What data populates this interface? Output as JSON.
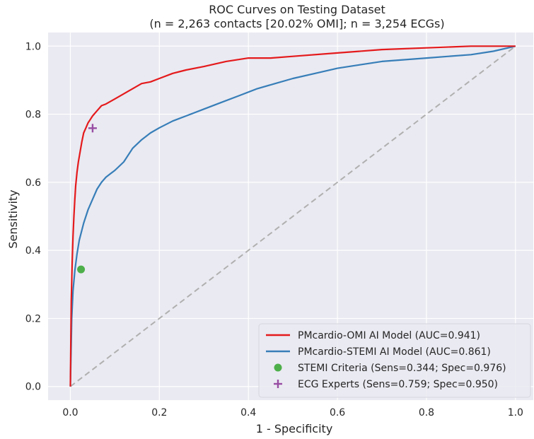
{
  "chart_data": {
    "type": "line",
    "title": "ROC Curves on Testing Dataset",
    "subtitle": "(n = 2,263 contacts [20.02% OMI]; n = 3,254 ECGs)",
    "xlabel": "1 - Specificity",
    "ylabel": "Sensitivity",
    "xlim": [
      -0.05,
      1.04
    ],
    "ylim": [
      -0.04,
      1.04
    ],
    "xticks": [
      "0.0",
      "0.2",
      "0.4",
      "0.6",
      "0.8",
      "1.0"
    ],
    "yticks": [
      "0.0",
      "0.2",
      "0.4",
      "0.6",
      "0.8",
      "1.0"
    ],
    "grid": true,
    "background": "#eaeaf2",
    "legend_position": "bottom-right",
    "series": [
      {
        "name": "PMcardio-OMI AI Model (AUC=0.941)",
        "color": "#e41a1c",
        "x": [
          0.0,
          0.002,
          0.004,
          0.006,
          0.008,
          0.01,
          0.012,
          0.015,
          0.018,
          0.022,
          0.026,
          0.03,
          0.035,
          0.04,
          0.045,
          0.05,
          0.06,
          0.07,
          0.08,
          0.1,
          0.12,
          0.14,
          0.16,
          0.18,
          0.2,
          0.23,
          0.26,
          0.3,
          0.35,
          0.4,
          0.45,
          0.5,
          0.6,
          0.7,
          0.8,
          0.9,
          1.0
        ],
        "y": [
          0.0,
          0.25,
          0.36,
          0.44,
          0.5,
          0.55,
          0.59,
          0.63,
          0.66,
          0.69,
          0.72,
          0.745,
          0.76,
          0.775,
          0.785,
          0.795,
          0.81,
          0.825,
          0.83,
          0.845,
          0.86,
          0.875,
          0.89,
          0.895,
          0.905,
          0.92,
          0.93,
          0.94,
          0.955,
          0.965,
          0.965,
          0.97,
          0.98,
          0.99,
          0.995,
          1.0,
          1.0
        ]
      },
      {
        "name": "PMcardio-STEMI AI Model (AUC=0.861)",
        "color": "#377eb8",
        "x": [
          0.0,
          0.003,
          0.006,
          0.01,
          0.015,
          0.02,
          0.03,
          0.04,
          0.05,
          0.06,
          0.07,
          0.08,
          0.09,
          0.1,
          0.12,
          0.14,
          0.16,
          0.18,
          0.2,
          0.23,
          0.26,
          0.3,
          0.34,
          0.38,
          0.42,
          0.46,
          0.5,
          0.55,
          0.6,
          0.65,
          0.7,
          0.8,
          0.9,
          0.95,
          1.0
        ],
        "y": [
          0.0,
          0.2,
          0.28,
          0.34,
          0.39,
          0.43,
          0.48,
          0.52,
          0.55,
          0.58,
          0.6,
          0.615,
          0.625,
          0.635,
          0.66,
          0.7,
          0.725,
          0.745,
          0.76,
          0.78,
          0.795,
          0.815,
          0.835,
          0.855,
          0.875,
          0.89,
          0.905,
          0.92,
          0.935,
          0.945,
          0.955,
          0.965,
          0.975,
          0.985,
          1.0
        ]
      }
    ],
    "diagonal": {
      "color": "#b0b0b0",
      "dash": "dashed"
    },
    "points": [
      {
        "name": "STEMI Criteria (Sens=0.344; Spec=0.976)",
        "x": 0.024,
        "y": 0.344,
        "marker": "circle",
        "color": "#4daf4a"
      },
      {
        "name": "ECG Experts (Sens=0.759; Spec=0.950)",
        "x": 0.05,
        "y": 0.759,
        "marker": "plus",
        "color": "#984ea3"
      }
    ]
  }
}
